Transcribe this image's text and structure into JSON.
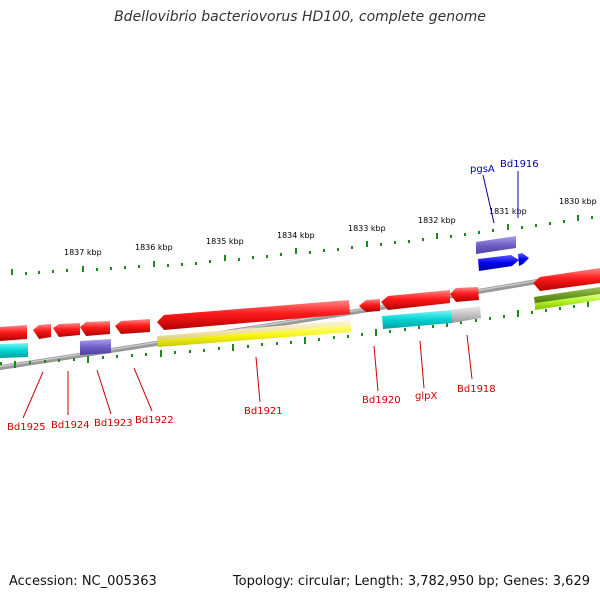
{
  "title": "Bdellovibrio bacteriovorus HD100, complete genome",
  "footer": {
    "accession": "Accession: NC_005363",
    "summary": "Topology: circular; Length: 3,782,950 bp; Genes: 3,629"
  },
  "colors": {
    "backbone": "#888888",
    "forward_gene": "#0000ff",
    "reverse_gene": "#ff0000",
    "forward_label": "#0000aa",
    "reverse_label": "#cc0000",
    "tick": "#1a8a1a"
  },
  "scale_labels": [
    "1837 kbp",
    "1836 kbp",
    "1835 kbp",
    "1834 kbp",
    "1833 kbp",
    "1832 kbp",
    "1831 kbp",
    "1830 kbp"
  ],
  "gene_labels": [
    {
      "text": "pgsA",
      "strand": "forward"
    },
    {
      "text": "Bd1916",
      "strand": "forward"
    },
    {
      "text": "Bd1925",
      "strand": "reverse"
    },
    {
      "text": "Bd1924",
      "strand": "reverse"
    },
    {
      "text": "Bd1923",
      "strand": "reverse"
    },
    {
      "text": "Bd1922",
      "strand": "reverse"
    },
    {
      "text": "Bd1921",
      "strand": "reverse"
    },
    {
      "text": "Bd1920",
      "strand": "reverse"
    },
    {
      "text": "glpX",
      "strand": "reverse"
    },
    {
      "text": "Bd1918",
      "strand": "reverse"
    }
  ]
}
